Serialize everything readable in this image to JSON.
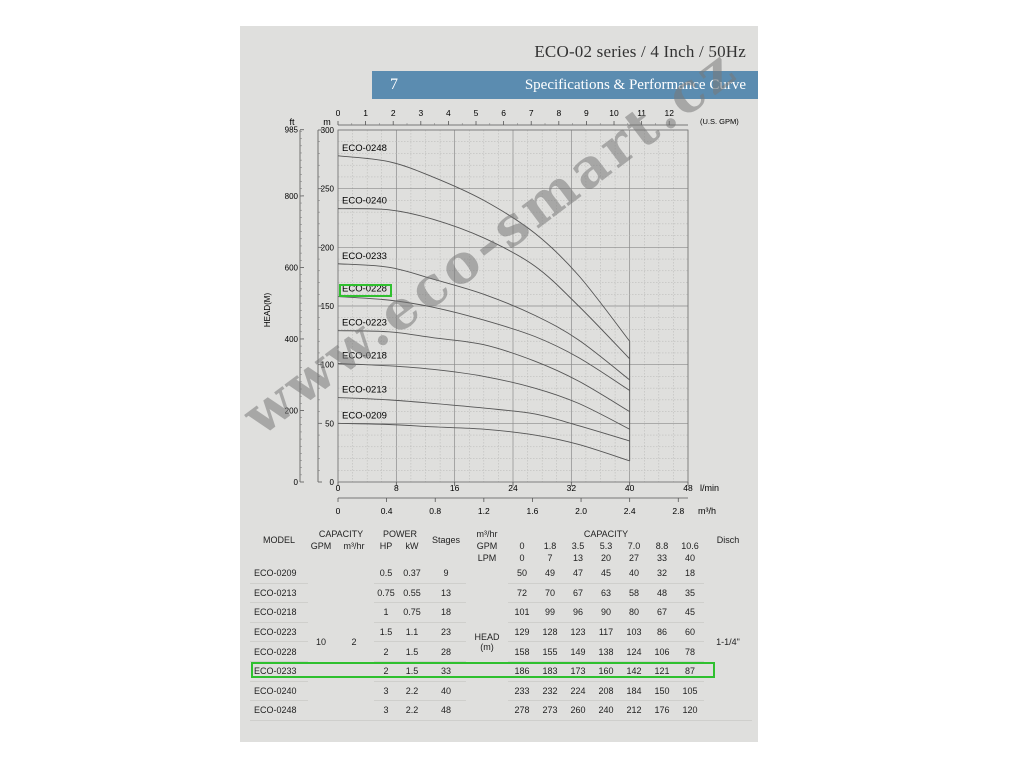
{
  "header": {
    "title": "ECO-02 series / 4 Inch / 50Hz",
    "section_number": "7",
    "section_title": "Specifications & Performance Curve"
  },
  "watermark": "www.eco-smart.cz",
  "chart_data": {
    "type": "line",
    "title": "",
    "ylabel": "HEAD(M)",
    "ylabel_left_unit": "ft",
    "ylabel_unit": "m",
    "xlabel_units": [
      "l/min",
      "m³/h"
    ],
    "top_axis_unit": "(U.S. GPM)",
    "ylim": [
      0,
      300
    ],
    "xlim_lpm": [
      0,
      48
    ],
    "grid": true,
    "y_ticks_m": [
      "0",
      "50",
      "100",
      "150",
      "200",
      "250",
      "300"
    ],
    "y_ticks_ft": [
      "0",
      "200",
      "400",
      "600",
      "800",
      "985"
    ],
    "x_ticks_lpm": [
      "0",
      "8",
      "16",
      "24",
      "32",
      "40",
      "48"
    ],
    "x_ticks_m3h": [
      "0",
      "0.4",
      "0.8",
      "1.2",
      "1.6",
      "2.0",
      "2.4",
      "2.8"
    ],
    "x_ticks_gpm": [
      "0",
      "1",
      "2",
      "3",
      "4",
      "5",
      "6",
      "7",
      "8",
      "9",
      "10",
      "11",
      "12"
    ],
    "x": [
      0,
      7,
      13,
      20,
      27,
      33,
      40
    ],
    "series": [
      {
        "name": "ECO-0248",
        "values": [
          278,
          273,
          260,
          240,
          212,
          176,
          120
        ]
      },
      {
        "name": "ECO-0240",
        "values": [
          233,
          232,
          224,
          208,
          184,
          150,
          105
        ]
      },
      {
        "name": "ECO-0233",
        "values": [
          186,
          183,
          173,
          160,
          142,
          121,
          87
        ]
      },
      {
        "name": "ECO-0228",
        "values": [
          158,
          155,
          149,
          138,
          124,
          106,
          78
        ]
      },
      {
        "name": "ECO-0223",
        "values": [
          129,
          128,
          123,
          117,
          103,
          86,
          60
        ]
      },
      {
        "name": "ECO-0218",
        "values": [
          101,
          99,
          96,
          90,
          80,
          67,
          45
        ]
      },
      {
        "name": "ECO-0213",
        "values": [
          72,
          70,
          67,
          63,
          58,
          48,
          35
        ]
      },
      {
        "name": "ECO-0209",
        "values": [
          50,
          49,
          47,
          45,
          40,
          32,
          18
        ]
      }
    ],
    "highlighted_series": "ECO-0228"
  },
  "table": {
    "col_model": "MODEL",
    "col_capacity": "CAPACITY",
    "col_gpm": "GPM",
    "col_m3hr": "m³/hr",
    "col_power": "POWER",
    "col_hp": "HP",
    "col_kw": "kW",
    "col_stages": "Stages",
    "col_capacity2": "CAPACITY",
    "unit_m3hr": "m³/hr",
    "unit_gpm": "GPM",
    "unit_lpm": "LPM",
    "cap_m3hr": [
      "0",
      "0.4",
      "0.8",
      "1.2",
      "1.6",
      "2.0",
      "2.4"
    ],
    "cap_gpm": [
      "0",
      "1.8",
      "3.5",
      "5.3",
      "7.0",
      "8.8",
      "10.6"
    ],
    "cap_lpm": [
      "0",
      "7",
      "13",
      "20",
      "27",
      "33",
      "40"
    ],
    "col_disch": "Disch",
    "head_label": "HEAD",
    "head_unit": "(m)",
    "merged_gpm": "10",
    "merged_m3hr": "2",
    "disch_value": "1-1/4\"",
    "rows": [
      {
        "model": "ECO-0209",
        "hp": "0.5",
        "kw": "0.37",
        "stages": "9",
        "head": [
          "50",
          "49",
          "47",
          "45",
          "40",
          "32",
          "18"
        ]
      },
      {
        "model": "ECO-0213",
        "hp": "0.75",
        "kw": "0.55",
        "stages": "13",
        "head": [
          "72",
          "70",
          "67",
          "63",
          "58",
          "48",
          "35"
        ]
      },
      {
        "model": "ECO-0218",
        "hp": "1",
        "kw": "0.75",
        "stages": "18",
        "head": [
          "101",
          "99",
          "96",
          "90",
          "80",
          "67",
          "45"
        ]
      },
      {
        "model": "ECO-0223",
        "hp": "1.5",
        "kw": "1.1",
        "stages": "23",
        "head": [
          "129",
          "128",
          "123",
          "117",
          "103",
          "86",
          "60"
        ]
      },
      {
        "model": "ECO-0228",
        "hp": "2",
        "kw": "1.5",
        "stages": "28",
        "head": [
          "158",
          "155",
          "149",
          "138",
          "124",
          "106",
          "78"
        ]
      },
      {
        "model": "ECO-0233",
        "hp": "2",
        "kw": "1.5",
        "stages": "33",
        "head": [
          "186",
          "183",
          "173",
          "160",
          "142",
          "121",
          "87"
        ]
      },
      {
        "model": "ECO-0240",
        "hp": "3",
        "kw": "2.2",
        "stages": "40",
        "head": [
          "233",
          "232",
          "224",
          "208",
          "184",
          "150",
          "105"
        ]
      },
      {
        "model": "ECO-0248",
        "hp": "3",
        "kw": "2.2",
        "stages": "48",
        "head": [
          "278",
          "273",
          "260",
          "240",
          "212",
          "176",
          "120"
        ]
      }
    ]
  },
  "colors": {
    "background": "#dfdfdd",
    "banner": "#5b8cb0",
    "curve": "#555555",
    "grid": "#9a9a9a",
    "highlight": "#2fc02f"
  }
}
